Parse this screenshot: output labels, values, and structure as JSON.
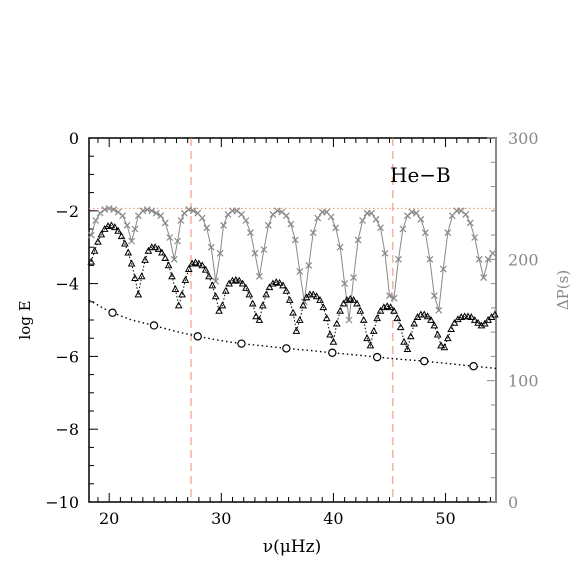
{
  "chart_data": {
    "type": "scatter",
    "annotation": "He−B",
    "xlabel": "ν(μHz)",
    "ylabel_left": "log E",
    "ylabel_right": "ΔP(s)",
    "xlim": [
      18.2,
      54.5
    ],
    "ylim_left": [
      -10,
      0
    ],
    "ylim_right": [
      0,
      300
    ],
    "x_ticks": [
      20,
      30,
      40,
      50
    ],
    "x_tick_labels": [
      "20",
      "30",
      "40",
      "50"
    ],
    "y_left_ticks": [
      0,
      -2,
      -4,
      -6,
      -8,
      -10
    ],
    "y_left_tick_labels": [
      "0",
      "−2",
      "−4",
      "−6",
      "−8",
      "−10"
    ],
    "y_right_ticks": [
      300,
      200,
      100,
      0
    ],
    "y_right_tick_labels": [
      "300",
      "200",
      "100",
      "0"
    ],
    "vertical_lines_x": [
      27.3,
      45.3
    ],
    "horizontal_line_right_y": 242,
    "colors": {
      "axes": "#000000",
      "right_axis": "#888888",
      "deltaP_series": "#888888",
      "reference_lines": "#f08c6c",
      "log_e_series": "#000000"
    },
    "series": [
      {
        "marker": "cross",
        "axis": "right",
        "style": "solid",
        "color": "#888888",
        "x": [
          18.4,
          18.8,
          19.2,
          19.6,
          20.0,
          20.4,
          20.8,
          21.2,
          21.6,
          22.0,
          22.3,
          22.6,
          23.0,
          23.4,
          23.8,
          24.2,
          24.6,
          25.0,
          25.4,
          25.8,
          26.1,
          26.4,
          26.7,
          27.1,
          27.5,
          27.9,
          28.3,
          28.7,
          29.1,
          29.5,
          29.9,
          30.2,
          30.6,
          31.0,
          31.4,
          31.8,
          32.2,
          32.6,
          33.0,
          33.4,
          33.8,
          34.2,
          34.6,
          35.0,
          35.4,
          35.8,
          36.2,
          36.6,
          37.0,
          37.4,
          37.8,
          38.2,
          38.6,
          39.0,
          39.4,
          39.8,
          40.2,
          40.6,
          41.0,
          41.4,
          41.8,
          42.2,
          42.6,
          43.0,
          43.4,
          43.8,
          44.2,
          44.6,
          45.0,
          45.4,
          45.8,
          46.2,
          46.6,
          47.0,
          47.4,
          47.8,
          48.2,
          48.6,
          49.0,
          49.4,
          49.8,
          50.2,
          50.6,
          51.0,
          51.4,
          51.8,
          52.2,
          52.6,
          53.0,
          53.4,
          53.8,
          54.2
        ],
        "y": [
          220,
          232,
          238,
          241,
          242,
          241,
          239,
          236,
          228,
          215,
          225,
          236,
          240,
          241,
          240,
          238,
          236,
          230,
          218,
          200,
          215,
          232,
          238,
          241,
          240,
          238,
          234,
          226,
          210,
          182,
          205,
          228,
          237,
          240,
          240,
          237,
          232,
          222,
          205,
          186,
          208,
          228,
          237,
          240,
          239,
          236,
          229,
          216,
          190,
          165,
          195,
          222,
          234,
          239,
          239,
          235,
          226,
          210,
          180,
          150,
          185,
          216,
          232,
          238,
          238,
          233,
          226,
          205,
          170,
          168,
          200,
          225,
          236,
          239,
          238,
          233,
          222,
          200,
          170,
          158,
          192,
          222,
          236,
          240,
          240,
          237,
          230,
          218,
          200,
          185,
          200,
          205
        ]
      },
      {
        "marker": "triangle",
        "axis": "left",
        "style": "dotted",
        "color": "#000000",
        "x": [
          18.4,
          18.7,
          19.0,
          19.3,
          19.6,
          19.9,
          20.2,
          20.5,
          20.8,
          21.1,
          21.4,
          21.7,
          22.0,
          22.3,
          22.6,
          22.9,
          23.2,
          23.5,
          23.8,
          24.1,
          24.4,
          24.7,
          25.0,
          25.3,
          25.6,
          25.9,
          26.2,
          26.5,
          26.8,
          27.1,
          27.4,
          27.7,
          28.0,
          28.3,
          28.6,
          28.9,
          29.2,
          29.5,
          29.8,
          30.1,
          30.4,
          30.7,
          31.0,
          31.3,
          31.6,
          31.9,
          32.2,
          32.5,
          32.8,
          33.1,
          33.4,
          33.7,
          34.0,
          34.3,
          34.6,
          34.9,
          35.2,
          35.5,
          35.8,
          36.1,
          36.4,
          36.7,
          37.0,
          37.3,
          37.6,
          37.9,
          38.2,
          38.5,
          38.8,
          39.1,
          39.4,
          39.7,
          40.0,
          40.3,
          40.6,
          40.9,
          41.2,
          41.5,
          41.8,
          42.1,
          42.4,
          42.7,
          43.0,
          43.3,
          43.6,
          43.9,
          44.2,
          44.5,
          44.8,
          45.1,
          45.4,
          45.7,
          46.0,
          46.3,
          46.6,
          46.9,
          47.2,
          47.5,
          47.8,
          48.1,
          48.4,
          48.7,
          49.0,
          49.3,
          49.6,
          49.9,
          50.2,
          50.5,
          50.8,
          51.1,
          51.4,
          51.7,
          52.0,
          52.3,
          52.6,
          52.9,
          53.2,
          53.5,
          53.8,
          54.1,
          54.4
        ],
        "y": [
          -3.4,
          -3.1,
          -2.85,
          -2.65,
          -2.5,
          -2.42,
          -2.4,
          -2.45,
          -2.55,
          -2.7,
          -2.9,
          -3.15,
          -3.45,
          -3.85,
          -4.3,
          -3.8,
          -3.35,
          -3.1,
          -3.0,
          -3.0,
          -3.05,
          -3.15,
          -3.3,
          -3.5,
          -3.8,
          -4.15,
          -4.6,
          -4.3,
          -3.9,
          -3.6,
          -3.45,
          -3.42,
          -3.45,
          -3.5,
          -3.62,
          -3.8,
          -4.05,
          -4.35,
          -4.75,
          -4.6,
          -4.2,
          -4.0,
          -3.92,
          -3.9,
          -3.92,
          -4.0,
          -4.12,
          -4.3,
          -4.55,
          -4.9,
          -5.0,
          -4.6,
          -4.3,
          -4.1,
          -4.0,
          -3.96,
          -3.98,
          -4.05,
          -4.2,
          -4.45,
          -4.8,
          -5.3,
          -5.0,
          -4.6,
          -4.38,
          -4.3,
          -4.3,
          -4.35,
          -4.45,
          -4.65,
          -4.95,
          -5.4,
          -5.6,
          -5.1,
          -4.75,
          -4.55,
          -4.45,
          -4.42,
          -4.45,
          -4.55,
          -4.75,
          -5.0,
          -5.5,
          -5.7,
          -5.3,
          -4.95,
          -4.75,
          -4.65,
          -4.62,
          -4.65,
          -4.75,
          -4.95,
          -5.2,
          -5.6,
          -5.8,
          -5.45,
          -5.1,
          -4.92,
          -4.85,
          -4.85,
          -4.9,
          -5.0,
          -5.15,
          -5.4,
          -5.7,
          -5.75,
          -5.5,
          -5.25,
          -5.08,
          -4.98,
          -4.92,
          -4.9,
          -4.9,
          -4.92,
          -5.0,
          -5.08,
          -5.15,
          -5.1,
          -5.0,
          -4.92,
          -4.85
        ]
      },
      {
        "marker": "circle",
        "axis": "left",
        "style": "dotted",
        "color": "#000000",
        "marker_x": [
          20.3,
          24.0,
          27.9,
          31.8,
          35.8,
          39.9,
          43.9,
          48.1,
          52.5
        ],
        "marker_y": [
          -4.8,
          -5.15,
          -5.45,
          -5.65,
          -5.78,
          -5.9,
          -6.02,
          -6.13,
          -6.27
        ],
        "curve_x": [
          18.2,
          19.5,
          20.3,
          22.0,
          24.0,
          26.0,
          27.9,
          30.0,
          31.8,
          34.0,
          35.8,
          38.0,
          39.9,
          42.0,
          43.9,
          46.0,
          48.1,
          50.0,
          52.5,
          54.5
        ],
        "curve_y": [
          -4.45,
          -4.68,
          -4.8,
          -5.0,
          -5.15,
          -5.32,
          -5.45,
          -5.57,
          -5.65,
          -5.72,
          -5.78,
          -5.84,
          -5.9,
          -5.96,
          -6.02,
          -6.08,
          -6.13,
          -6.19,
          -6.27,
          -6.33
        ]
      }
    ]
  }
}
